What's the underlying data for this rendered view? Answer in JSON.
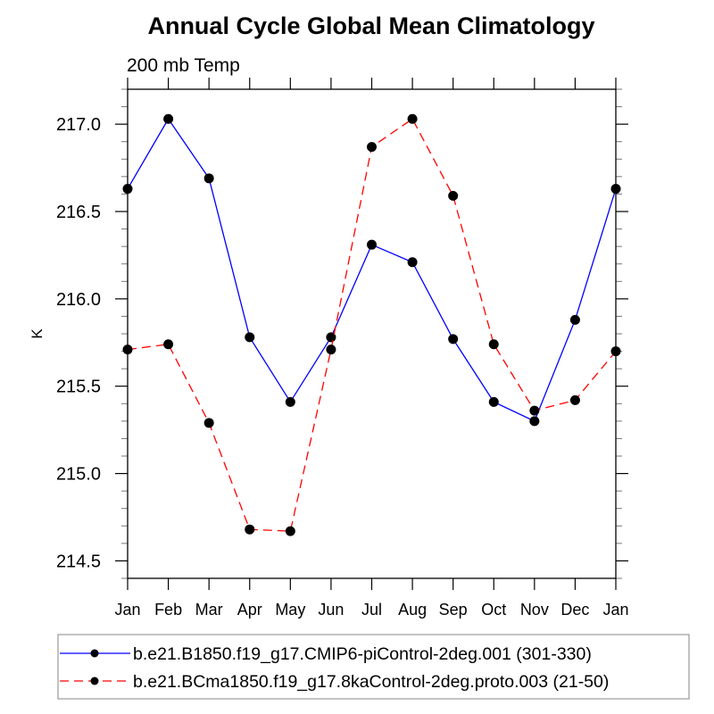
{
  "chart_data": {
    "type": "line",
    "title": "Annual Cycle Global Mean Climatology",
    "subtitle": "200 mb Temp",
    "xlabel": "",
    "ylabel": "K",
    "categories": [
      "Jan",
      "Feb",
      "Mar",
      "Apr",
      "May",
      "Jun",
      "Jul",
      "Aug",
      "Sep",
      "Oct",
      "Nov",
      "Dec",
      "Jan"
    ],
    "ylim": [
      214.4,
      217.2
    ],
    "yticks": [
      214.5,
      215.0,
      215.5,
      216.0,
      216.5,
      217.0
    ],
    "ytick_labels": [
      "214.5",
      "215.0",
      "215.5",
      "216.0",
      "216.5",
      "217.0"
    ],
    "yminor_step": 0.1,
    "grid": false,
    "legend_position": "bottom",
    "series": [
      {
        "name": "b.e21.B1850.f19_g17.CMIP6-piControl-2deg.001 (301-330)",
        "color": "#0000ff",
        "line_style": "solid",
        "marker": "filled-circle",
        "values": [
          216.63,
          217.03,
          216.69,
          215.78,
          215.41,
          215.78,
          216.31,
          216.21,
          215.77,
          215.41,
          215.3,
          215.88,
          216.63
        ]
      },
      {
        "name": "b.e21.BCma1850.f19_g17.8kaControl-2deg.proto.003 (21-50)",
        "color": "#ff0000",
        "line_style": "dashed",
        "marker": "filled-circle",
        "values": [
          215.71,
          215.74,
          215.29,
          214.68,
          214.67,
          215.71,
          216.87,
          217.03,
          216.59,
          215.74,
          215.36,
          215.42,
          215.7
        ]
      }
    ]
  }
}
